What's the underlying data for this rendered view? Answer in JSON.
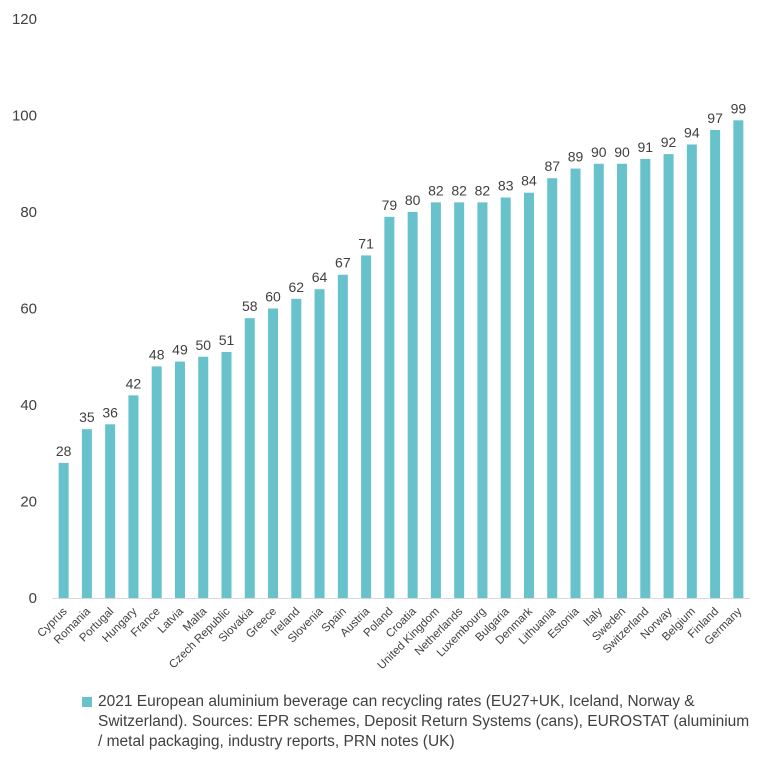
{
  "colors": {
    "bar": "#67c2cc",
    "axis": "#d9d9d9",
    "text": "#404040"
  },
  "chart_data": {
    "type": "bar",
    "title": "",
    "xlabel": "",
    "ylabel": "",
    "ylim": [
      0,
      120
    ],
    "yticks": [
      0,
      20,
      40,
      60,
      80,
      100,
      120
    ],
    "grid": false,
    "legend_position": "bottom",
    "categories": [
      "Cyprus",
      "Romania",
      "Portugal",
      "Hungary",
      "France",
      "Latvia",
      "Malta",
      "Czech Republic",
      "Slovakia",
      "Greece",
      "Ireland",
      "Slovenia",
      "Spain",
      "Austria",
      "Poland",
      "Croatia",
      "United Kingdom",
      "Netherlands",
      "Luxembourg",
      "Bulgaria",
      "Denmark",
      "Lithuania",
      "Estonia",
      "Italy",
      "Sweden",
      "Switzerland",
      "Norway",
      "Belgium",
      "Finland",
      "Germany"
    ],
    "series": [
      {
        "name": "2021 European aluminium beverage can recycling rates (EU27+UK, Iceland, Norway & Switzerland). Sources: EPR schemes, Deposit Return Systems (cans), EUROSTAT (aluminium / metal packaging, industry reports, PRN notes (UK)",
        "values": [
          28,
          35,
          36,
          42,
          48,
          49,
          50,
          51,
          58,
          60,
          62,
          64,
          67,
          71,
          79,
          80,
          82,
          82,
          82,
          83,
          84,
          87,
          89,
          90,
          90,
          91,
          92,
          94,
          97,
          99
        ]
      }
    ]
  }
}
